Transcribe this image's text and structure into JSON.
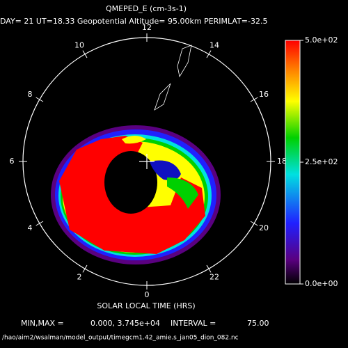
{
  "title": "QMEPED_E (cm-3s-1)",
  "subtitle": "DAY= 21 UT=18.33 Geopotential Altitude= 95.00km PERIMLAT=-32.5",
  "hour_labels": [
    12,
    14,
    16,
    18,
    20,
    22,
    0,
    2,
    4,
    6,
    8,
    10
  ],
  "x_label": "SOLAR LOCAL TIME (HRS)",
  "colorbar": {
    "lim": [
      0,
      500
    ],
    "ticks": [
      {
        "value": 500,
        "label": "5.0e+02"
      },
      {
        "value": 250,
        "label": "2.5e+02"
      },
      {
        "value": 0,
        "label": "0.0e+00"
      }
    ]
  },
  "footer": {
    "minmax_label": "MIN,MAX =",
    "minmax_value": "0.000, 3.745e+04",
    "interval_label": "INTERVAL =",
    "interval_value": "75.00",
    "file": "/hao/aim2/wsalman/model_output/timegcm1.42_amie.s_jan05_dion_082.nc"
  }
}
